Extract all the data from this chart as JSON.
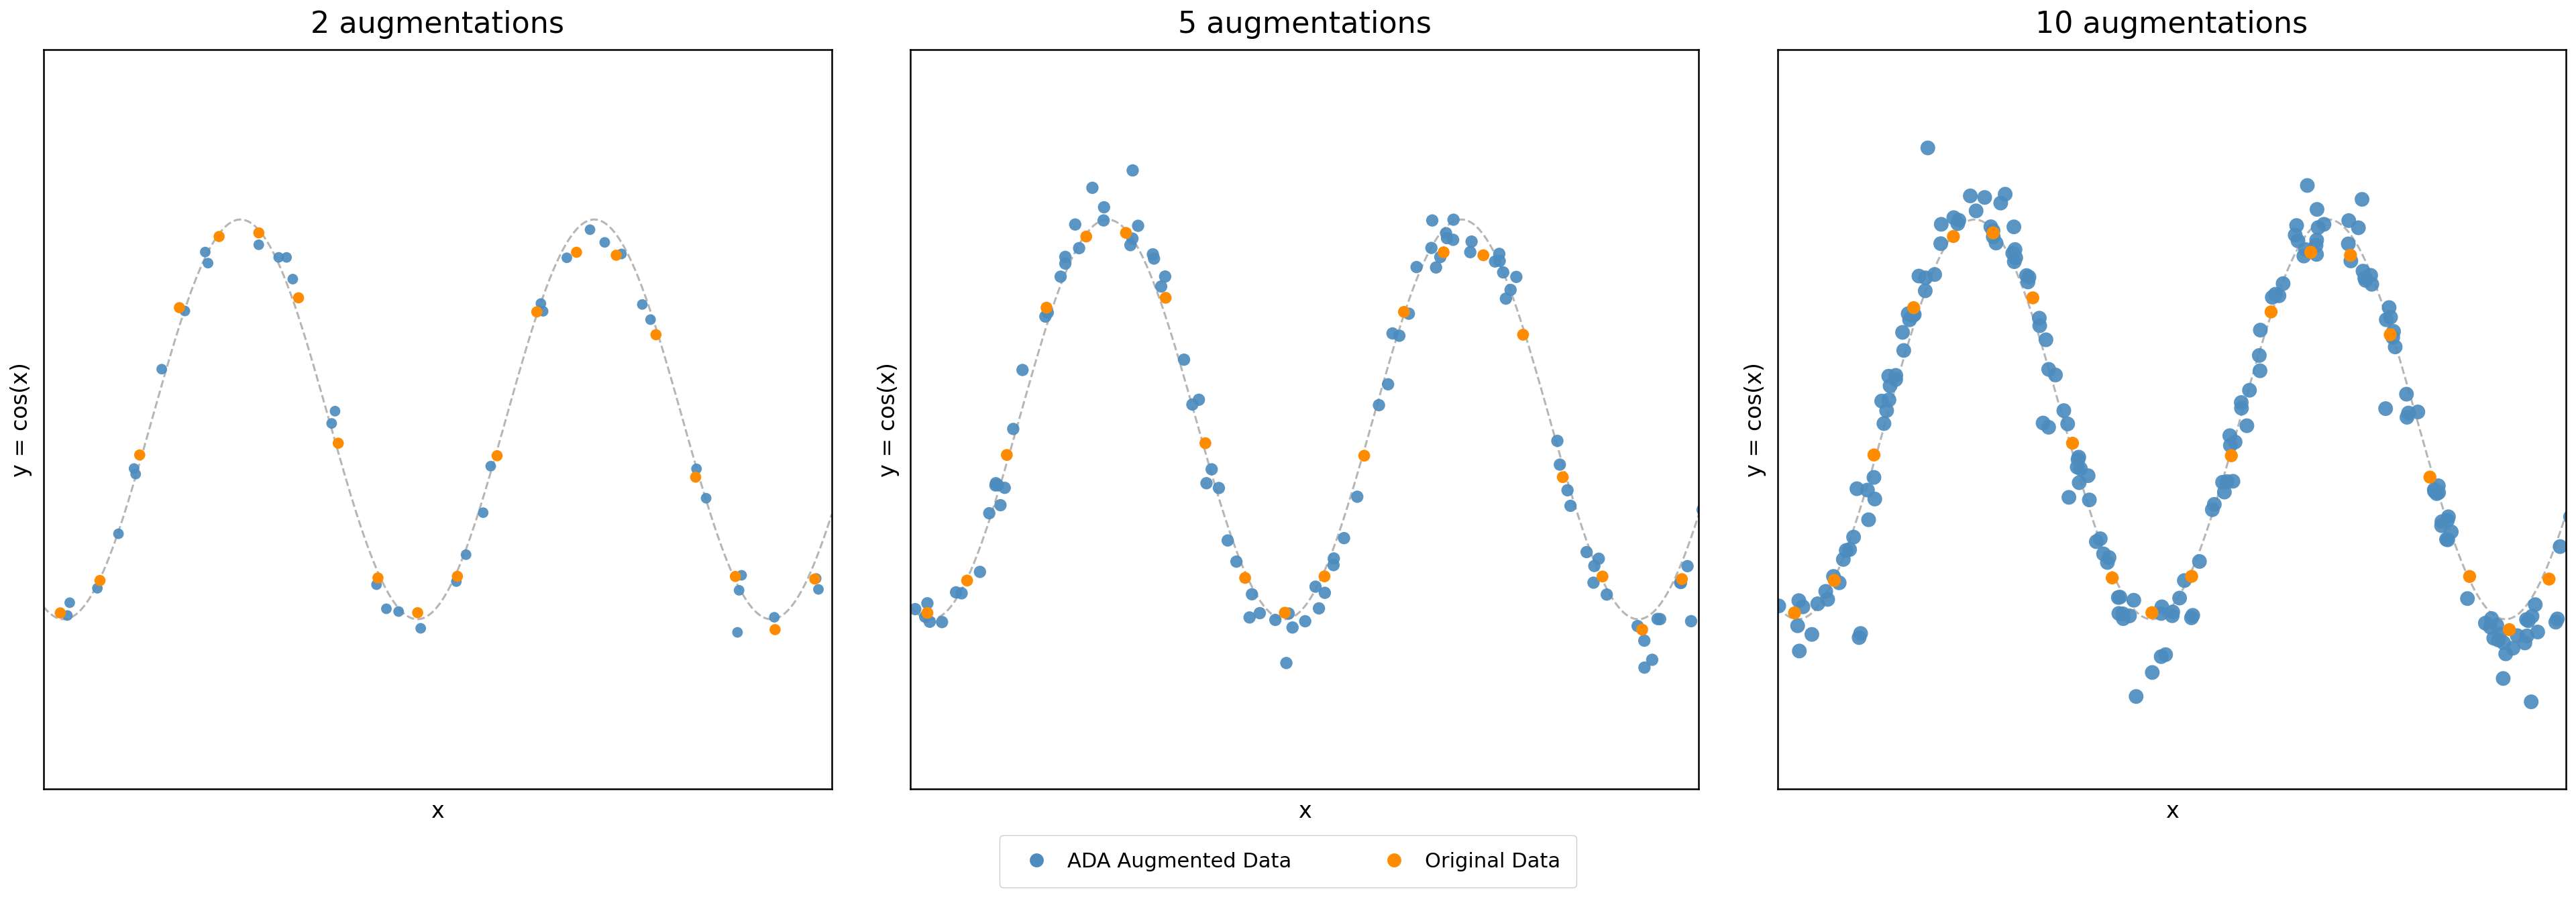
{
  "titles": [
    "2 augmentations",
    "5 augmentations",
    "10 augmentations"
  ],
  "n_augmentations": [
    2,
    5,
    10
  ],
  "xlabel": "x",
  "ylabel": "y = cos(x)",
  "blue_color": "#4C8CBF",
  "orange_color": "#FF8C00",
  "curve_color": "#aaaaaa",
  "background_color": "#ffffff",
  "legend_labels": [
    "ADA Augmented Data",
    "Original Data"
  ],
  "seed": 42,
  "n_original": 20,
  "x_range": [
    -3.5,
    10.5
  ],
  "y_lim": [
    -1.85,
    1.85
  ],
  "title_fontsize": 32,
  "label_fontsize": 24,
  "legend_fontsize": 22,
  "dot_size_orig": 130,
  "dot_size_aug": 100,
  "tangent_spread_base": 0.18,
  "perp_spread": 0.04
}
